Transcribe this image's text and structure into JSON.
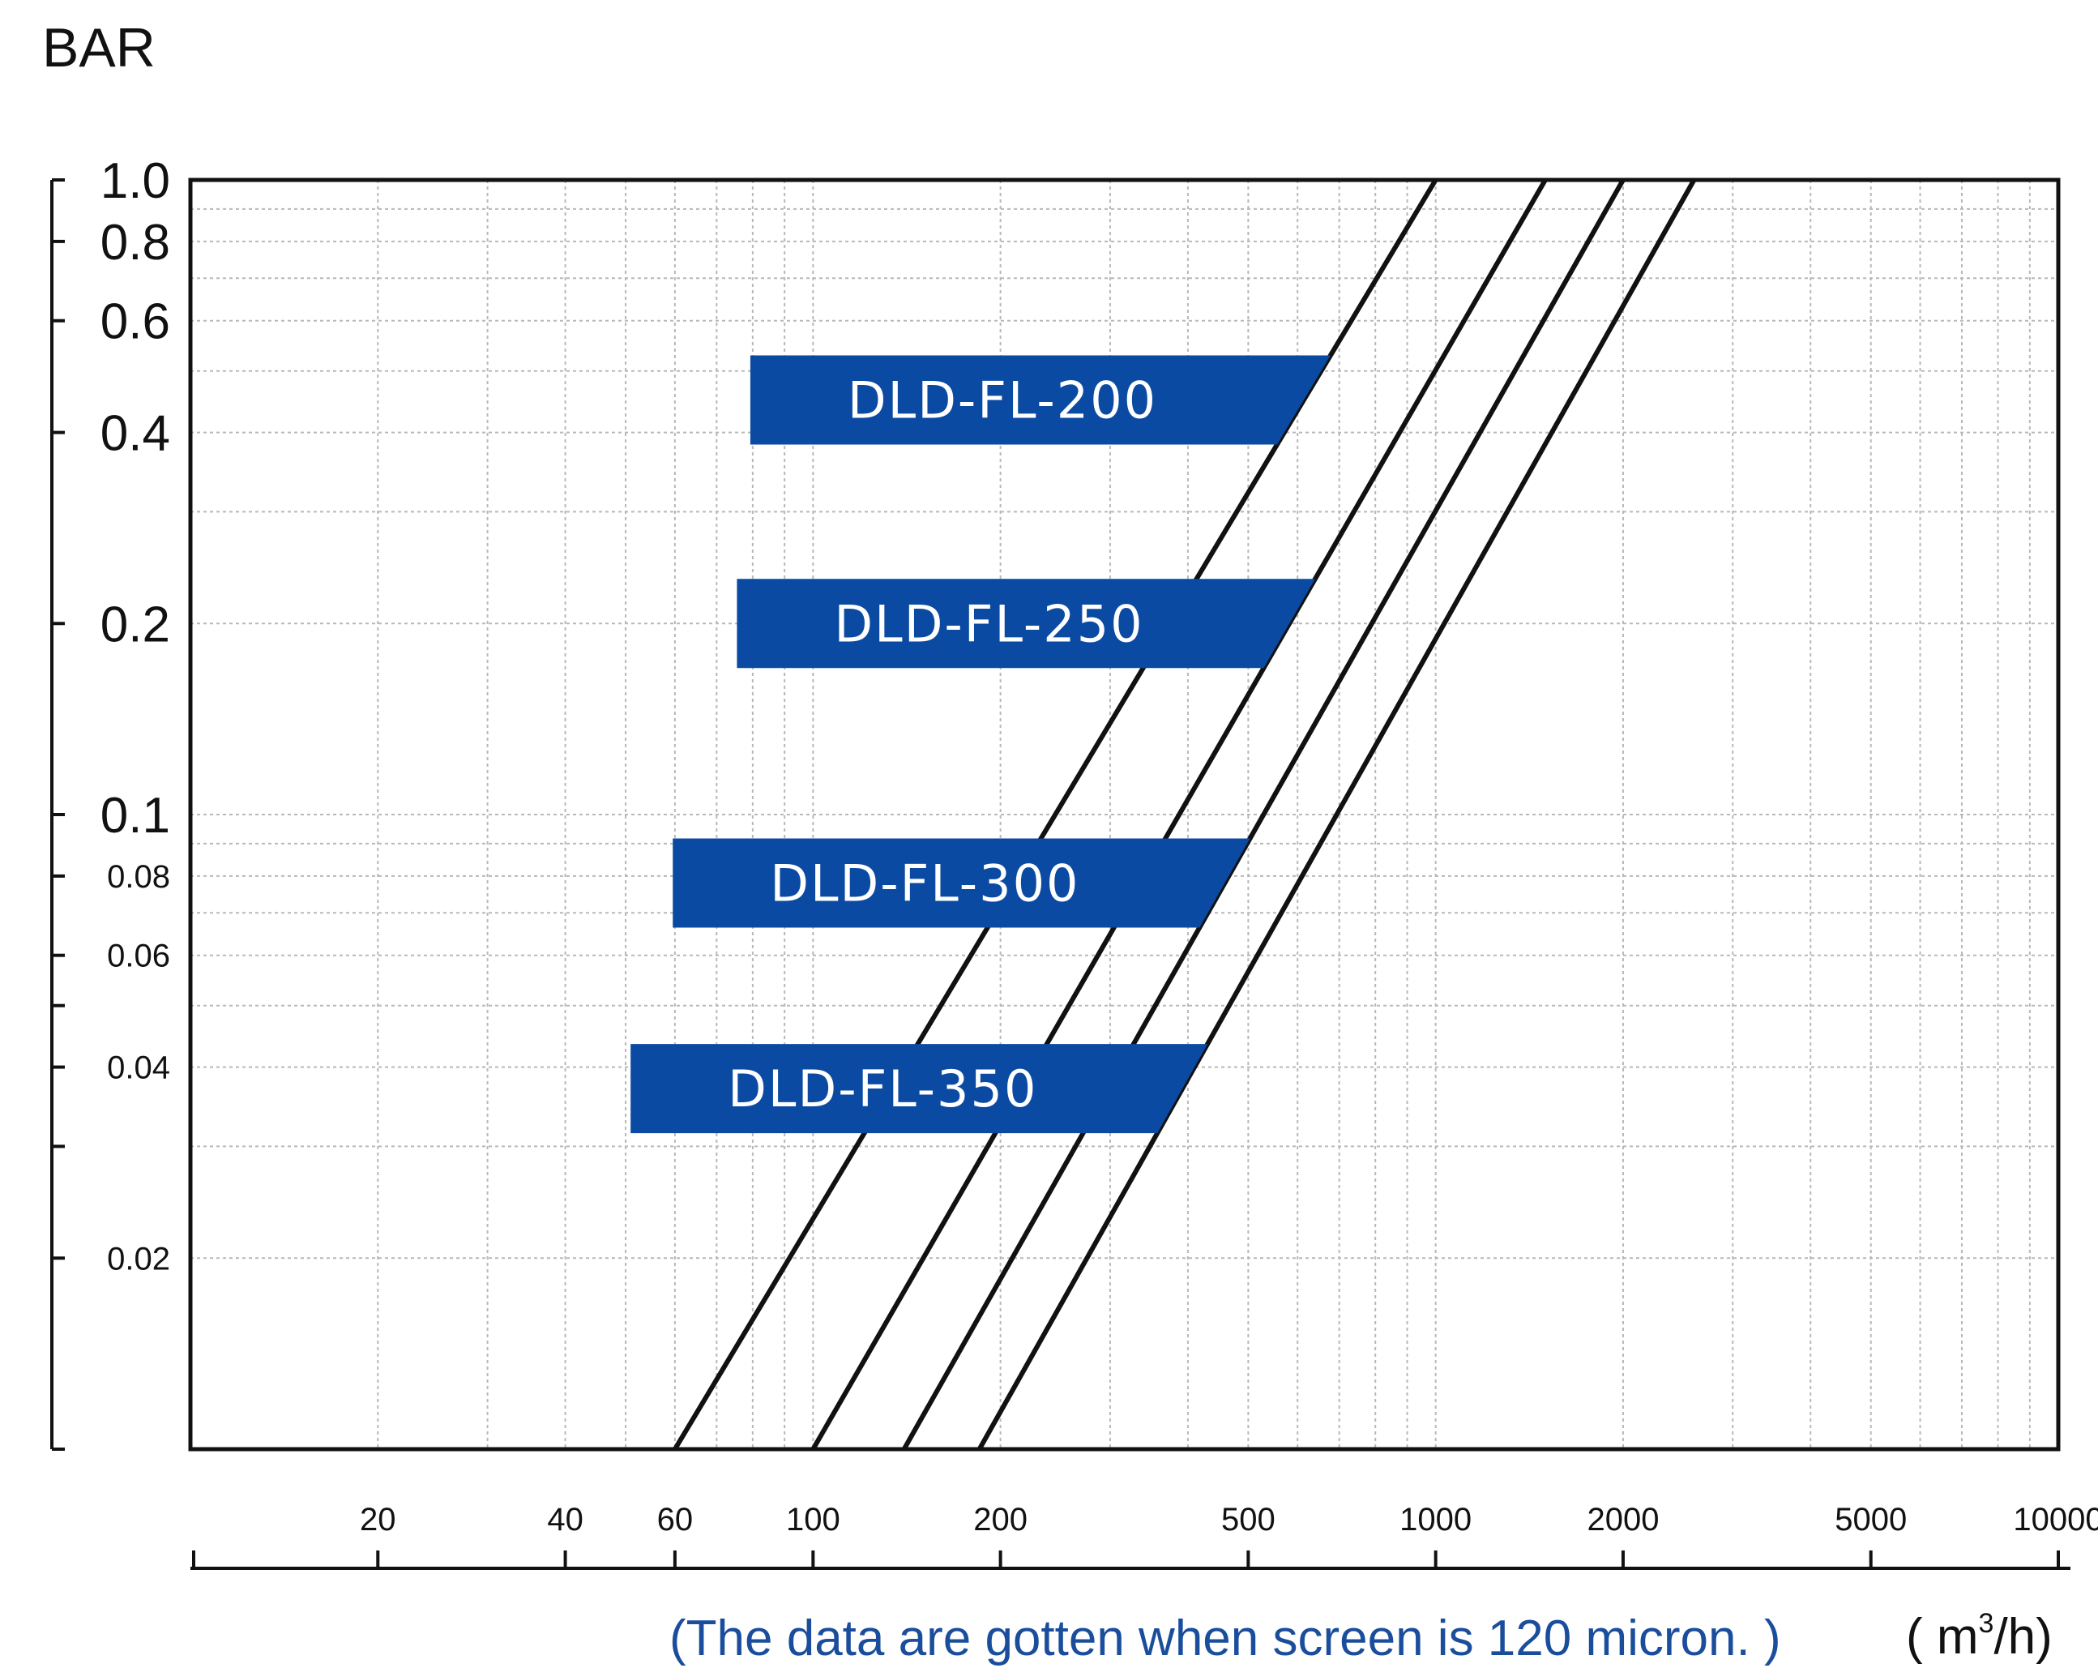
{
  "chart_data": {
    "type": "line",
    "ylabel": "BAR",
    "yscale": "log",
    "xscale": "log",
    "ylim": [
      0.01,
      1.0
    ],
    "xlim": [
      10,
      10000
    ],
    "grid": true,
    "y_ticks": [
      {
        "v": 1.0,
        "label": "1.0",
        "size": "big"
      },
      {
        "v": 0.8,
        "label": "0.8",
        "size": "big"
      },
      {
        "v": 0.6,
        "label": "0.6",
        "size": "big"
      },
      {
        "v": 0.4,
        "label": "0.4",
        "size": "big"
      },
      {
        "v": 0.2,
        "label": "0.2",
        "size": "big"
      },
      {
        "v": 0.1,
        "label": "0.1",
        "size": "big"
      },
      {
        "v": 0.08,
        "label": "0.08",
        "size": "small"
      },
      {
        "v": 0.06,
        "label": "0.06",
        "size": "small"
      },
      {
        "v": 0.04,
        "label": "0.04",
        "size": "small"
      },
      {
        "v": 0.02,
        "label": "0.02",
        "size": "small"
      }
    ],
    "y_extra_ticks": [
      0.05,
      0.03,
      0.01
    ],
    "x_ticks": [
      {
        "v": 20,
        "label": "20"
      },
      {
        "v": 40,
        "label": "40"
      },
      {
        "v": 60,
        "label": "60"
      },
      {
        "v": 100,
        "label": "100"
      },
      {
        "v": 200,
        "label": "200"
      },
      {
        "v": 500,
        "label": "500"
      },
      {
        "v": 1000,
        "label": "1000"
      },
      {
        "v": 2000,
        "label": "2000"
      },
      {
        "v": 5000,
        "label": "5000"
      },
      {
        "v": 10000,
        "label": "10000"
      }
    ],
    "series": [
      {
        "name": "DLD-FL-200",
        "x": [
          60,
          1000
        ],
        "y": [
          0.01,
          1.0
        ]
      },
      {
        "name": "DLD-FL-250",
        "x": [
          100,
          1500
        ],
        "y": [
          0.01,
          1.0
        ]
      },
      {
        "name": "DLD-FL-300",
        "x": [
          140,
          2000
        ],
        "y": [
          0.01,
          1.0
        ]
      },
      {
        "name": "DLD-FL-350",
        "x": [
          185,
          2600
        ],
        "y": [
          0.01,
          1.0
        ]
      }
    ],
    "note": "(The data are gotten when screen is 120 micron. )",
    "x_unit": "( m",
    "x_unit_sup": "3",
    "x_unit_tail": "/h)",
    "colors": {
      "line": "#111111",
      "label_bg": "#0b4aa3",
      "label_text": "#ffffff",
      "note": "#1a4e9c",
      "grid": "#b8b8b8"
    }
  }
}
